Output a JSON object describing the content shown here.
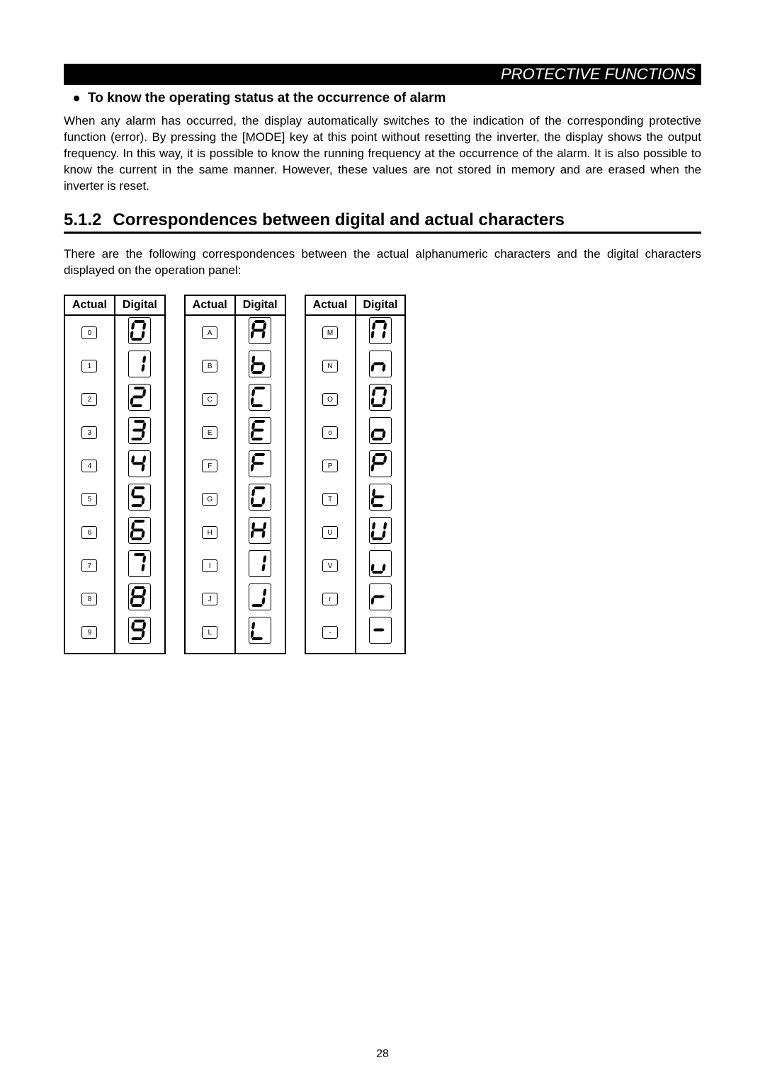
{
  "header": {
    "title": "PROTECTIVE FUNCTIONS"
  },
  "bullet_heading": "To know the operating status at the occurrence of alarm",
  "paragraph1": "When any alarm has occurred, the display automatically switches to the indication of the corresponding protective function (error). By pressing the [MODE] key at this point without resetting the inverter, the display shows the output frequency. In this way, it is possible to know the running frequency at the occurrence of the alarm. It is also possible to know the current in the same manner. However, these values are not stored in memory and are erased when the inverter is reset.",
  "section": {
    "number": "5.1.2",
    "title": "Correspondences between digital and actual characters"
  },
  "paragraph2": "There are the following correspondences between the actual alphanumeric characters and the digital characters displayed on the operation panel:",
  "columns": {
    "actual": "Actual",
    "digital": "Digital"
  },
  "table1": [
    {
      "actual": "0",
      "seg": "abcdef"
    },
    {
      "actual": "1",
      "seg": "bc"
    },
    {
      "actual": "2",
      "seg": "abged"
    },
    {
      "actual": "3",
      "seg": "abgcd"
    },
    {
      "actual": "4",
      "seg": "fgbc"
    },
    {
      "actual": "5",
      "seg": "afgcd"
    },
    {
      "actual": "6",
      "seg": "afgecd"
    },
    {
      "actual": "7",
      "seg": "abc"
    },
    {
      "actual": "8",
      "seg": "abcdefg"
    },
    {
      "actual": "9",
      "seg": "abcfgd"
    }
  ],
  "table2": [
    {
      "actual": "A",
      "seg": "abcefg"
    },
    {
      "actual": "B",
      "seg": "fgecd"
    },
    {
      "actual": "C",
      "seg": "afed"
    },
    {
      "actual": "E",
      "seg": "afged"
    },
    {
      "actual": "F",
      "seg": "afge"
    },
    {
      "actual": "G",
      "seg": "afedc"
    },
    {
      "actual": "H",
      "seg": "fbgec"
    },
    {
      "actual": "I",
      "seg": "bc"
    },
    {
      "actual": "J",
      "seg": "bcd"
    },
    {
      "actual": "L",
      "seg": "fed"
    }
  ],
  "table3": [
    {
      "actual": "M",
      "seg": "abcef"
    },
    {
      "actual": "N",
      "seg": "egc"
    },
    {
      "actual": "O",
      "seg": "abcdef"
    },
    {
      "actual": "o",
      "seg": "gecd"
    },
    {
      "actual": "P",
      "seg": "abfge"
    },
    {
      "actual": "T",
      "seg": "fged"
    },
    {
      "actual": "U",
      "seg": "fbedc"
    },
    {
      "actual": "V",
      "seg": "edc"
    },
    {
      "actual": "r",
      "seg": "ge"
    },
    {
      "actual": "-",
      "seg": "g"
    }
  ],
  "page_number": "28"
}
